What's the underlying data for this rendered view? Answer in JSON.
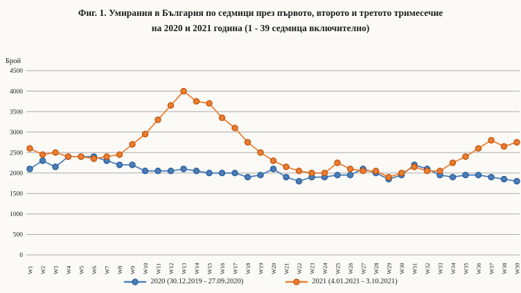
{
  "title": {
    "line1": "Фиг. 1. Умирания в България по седмици през първото, второто и третото тримесечие",
    "line2": "на 2020 и 2021 година (1 - 39 седмица включително)"
  },
  "colors": {
    "grid": "#a9a9a9",
    "series_2020": "#4a7ebb",
    "series_2020_stroke": "#2e6099",
    "series_2021": "#ed7d31",
    "series_2021_stroke": "#c55a11",
    "background": "#fbfaf7"
  },
  "chart_data": {
    "type": "line",
    "title": "Фиг. 1. Умирания в България по седмици през първото, второто и третото тримесечие на 2020 и 2021 година (1 - 39 седмица включително)",
    "xlabel": "",
    "ylabel": "Брой",
    "ylim": [
      0,
      4500
    ],
    "y_ticks": [
      4500,
      4000,
      3500,
      3000,
      2500,
      2000,
      1500,
      1000,
      500,
      0
    ],
    "grid": "horizontal",
    "legend_position": "bottom",
    "x_labels": [
      "W1",
      "W2",
      "W3",
      "W4",
      "W5",
      "W6",
      "W7",
      "W8",
      "W9",
      "W10",
      "W11",
      "W12",
      "W13",
      "W14",
      "W15",
      "W16",
      "W17",
      "W18",
      "W19",
      "W20",
      "W21",
      "W22",
      "W23",
      "W24",
      "W25",
      "W26",
      "W27",
      "W28",
      "W29",
      "W30",
      "W31",
      "W32",
      "W33",
      "W34",
      "W35",
      "W36",
      "W37",
      "W38",
      "W39"
    ],
    "series": [
      {
        "name": "2020 (30.12.2019 - 27.09.2020)",
        "color": "#4a7ebb",
        "marker_stroke": "#2e6099",
        "marker": "circle",
        "values": [
          2100,
          2300,
          2150,
          2400,
          2400,
          2400,
          2300,
          2200,
          2200,
          2050,
          2050,
          2050,
          2100,
          2050,
          2000,
          2000,
          2000,
          1900,
          1950,
          2100,
          1900,
          1800,
          1900,
          1900,
          1950,
          1950,
          2100,
          2000,
          1850,
          1950,
          2200,
          2100,
          1950,
          1900,
          1950,
          1950,
          1900,
          1850,
          1800
        ]
      },
      {
        "name": "2021 (4.01.2021 - 3.10.2021)",
        "color": "#ed7d31",
        "marker_stroke": "#c55a11",
        "marker": "circle",
        "values": [
          2600,
          2450,
          2500,
          2400,
          2400,
          2350,
          2400,
          2450,
          2700,
          2950,
          3300,
          3650,
          4000,
          3750,
          3700,
          3350,
          3100,
          2750,
          2500,
          2300,
          2150,
          2050,
          2000,
          2000,
          2250,
          2100,
          2050,
          2050,
          1900,
          2000,
          2150,
          2050,
          2050,
          2250,
          2400,
          2600,
          2800,
          2650,
          2750
        ]
      }
    ]
  }
}
